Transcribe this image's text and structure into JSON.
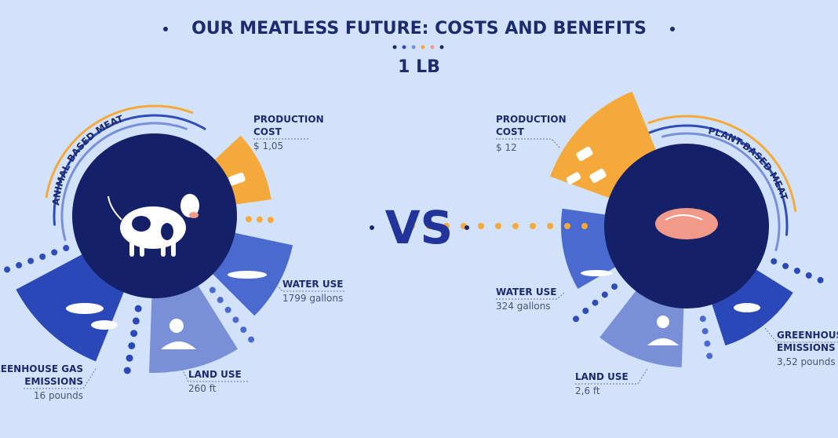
{
  "header": {
    "title": "OUR MEATLESS FUTURE: COSTS AND BENEFITS",
    "subtitle": "1 LB"
  },
  "vs": "VS",
  "left": {
    "name": "ANIMAL-BASED MEAT",
    "items": [
      {
        "label": [
          "PRODUCTION",
          "COST"
        ],
        "value": "$ 1,05"
      },
      {
        "label": [
          "WATER USE"
        ],
        "value": "1799 gallons"
      },
      {
        "label": [
          "LAND USE"
        ],
        "value": "260 ft"
      },
      {
        "label": [
          "GREENHOUSE GAS",
          "EMISSIONS"
        ],
        "value": "16 pounds"
      }
    ]
  },
  "right": {
    "name": "PLANT-BASED MEAT",
    "items": [
      {
        "label": [
          "PRODUCTION",
          "COST"
        ],
        "value": "$ 12"
      },
      {
        "label": [
          "WATER USE"
        ],
        "value": "324 gallons"
      },
      {
        "label": [
          "LAND USE"
        ],
        "value": "2,6 ft"
      },
      {
        "label": [
          "GREENHOUSE",
          "EMISSIONS"
        ],
        "value": "3,52 pounds"
      }
    ]
  }
}
